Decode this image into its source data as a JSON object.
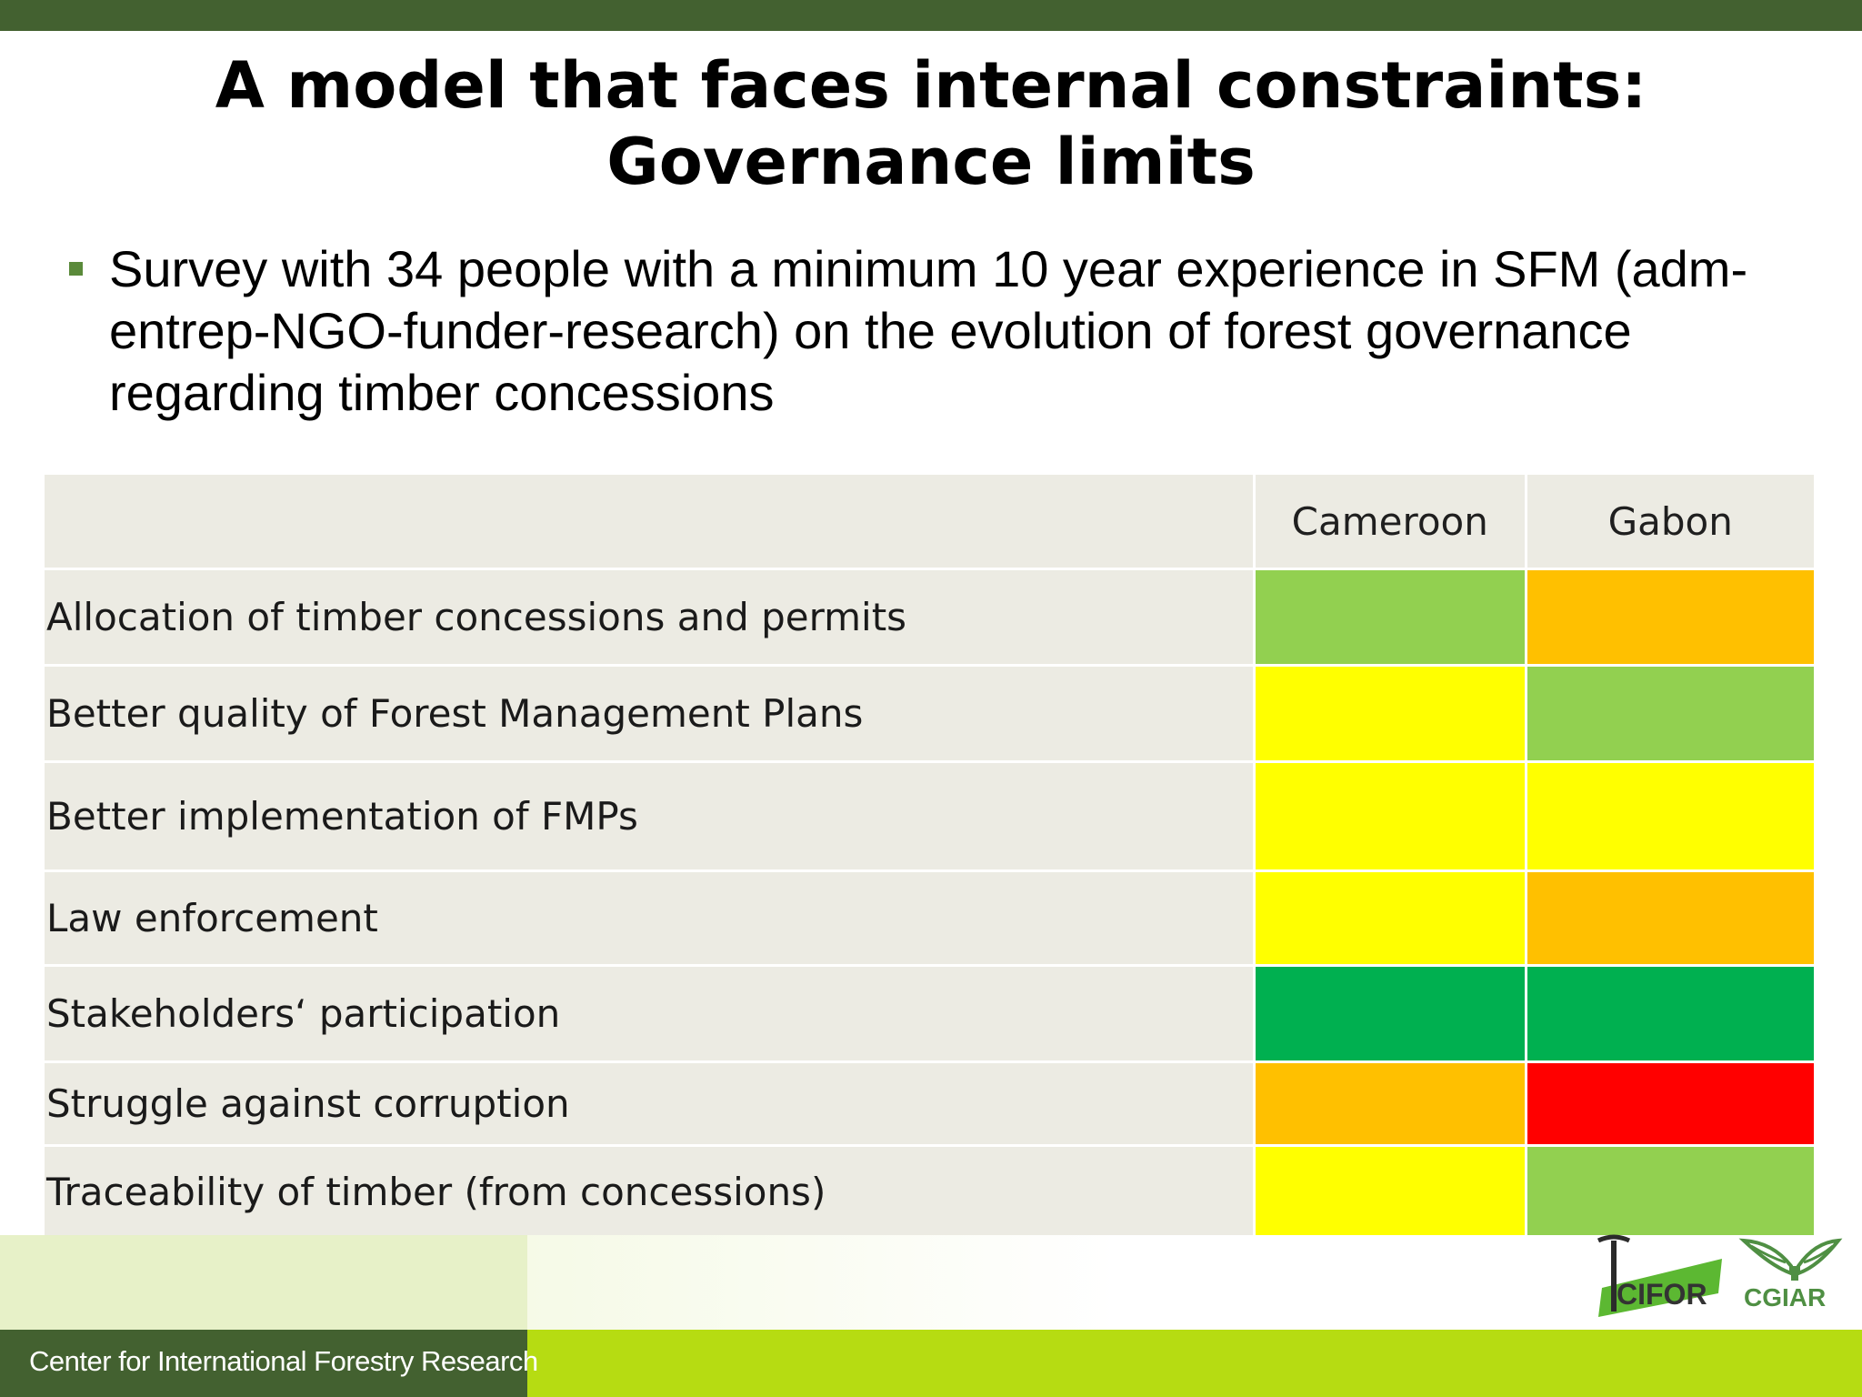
{
  "slide": {
    "title_line1": "A model that faces internal constraints:",
    "title_line2": "Governance limits",
    "bullet": "Survey with 34 people with a minimum 10 year experience in SFM (adm-entrep-NGO-funder-research) on the evolution of forest governance regarding timber concessions"
  },
  "table": {
    "headers": [
      "",
      "Cameroon",
      "Gabon"
    ],
    "rows": [
      {
        "label": "Allocation of timber concessions and permits",
        "cameroon_color": "#92d050",
        "gabon_color": "#ffc000"
      },
      {
        "label": "Better quality of Forest Management Plans",
        "cameroon_color": "#ffff00",
        "gabon_color": "#92d050"
      },
      {
        "label": "Better implementation of FMPs",
        "cameroon_color": "#ffff00",
        "gabon_color": "#ffff00"
      },
      {
        "label": "Law enforcement",
        "cameroon_color": "#ffff00",
        "gabon_color": "#ffc000"
      },
      {
        "label": "Stakeholders‘ participation",
        "cameroon_color": "#00b050",
        "gabon_color": "#00b050"
      },
      {
        "label": "Struggle against corruption",
        "cameroon_color": "#ffc000",
        "gabon_color": "#ff0000"
      },
      {
        "label": "Traceability of timber (from concessions)",
        "cameroon_color": "#ffff00",
        "gabon_color": "#92d050"
      }
    ]
  },
  "footer": {
    "org_name": "Center for International Forestry Research",
    "logo_cifor": "CIFOR",
    "logo_cgiar": "CGIAR"
  }
}
